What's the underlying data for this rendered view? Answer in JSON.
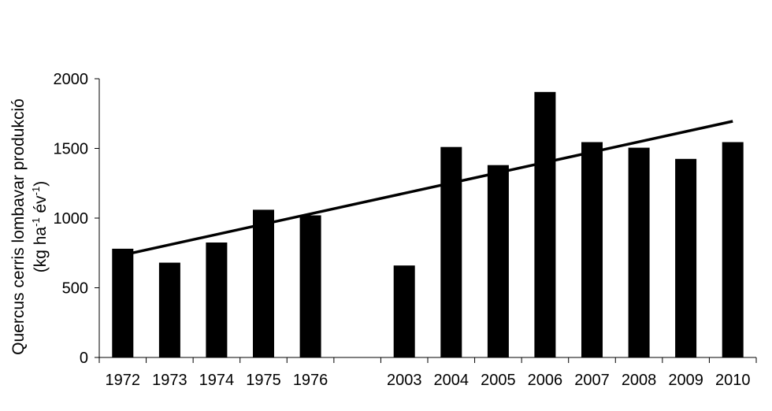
{
  "chart_data": {
    "type": "bar",
    "categories": [
      "1972",
      "1973",
      "1974",
      "1975",
      "1976",
      "",
      "2003",
      "2004",
      "2005",
      "2006",
      "2007",
      "2008",
      "2009",
      "2010"
    ],
    "values": [
      780,
      680,
      825,
      1060,
      1020,
      null,
      660,
      1510,
      1380,
      1905,
      1545,
      1505,
      1425,
      1545
    ],
    "trendline": {
      "from": {
        "category": "1972",
        "value": 735
      },
      "to": {
        "category": "2010",
        "value": 1695
      }
    },
    "ylim": [
      0,
      2000
    ],
    "yticks": [
      "0",
      "500",
      "1000",
      "1500",
      "2000"
    ],
    "ylabel_line1": "Quercus cerris lombavar produkció",
    "ylabel_line2": {
      "pre": "(kg ha",
      "sup1": "-1",
      "mid": " év",
      "sup2": "-1",
      "post": ")"
    },
    "bar_color": "#000000",
    "grid": false,
    "legend": "none"
  }
}
